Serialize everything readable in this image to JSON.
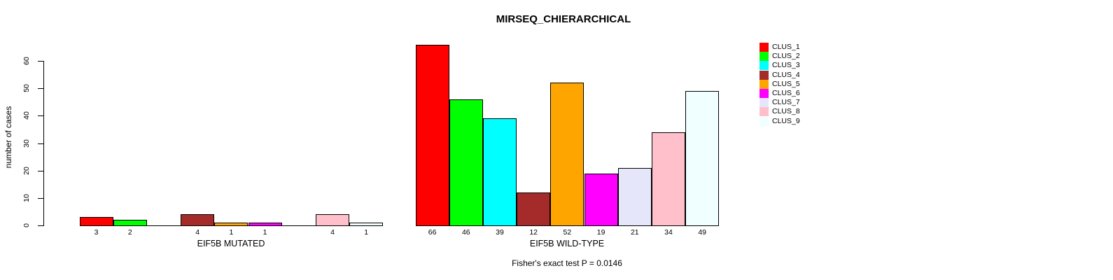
{
  "chart_data": {
    "type": "bar",
    "title": "MIRSEQ_CHIERARCHICAL",
    "ylabel": "number of cases",
    "xlabel": "",
    "ylim": [
      0,
      60
    ],
    "yticks": [
      0,
      10,
      20,
      30,
      40,
      50,
      60
    ],
    "categories": [
      "CLUS_1",
      "CLUS_2",
      "CLUS_3",
      "CLUS_4",
      "CLUS_5",
      "CLUS_6",
      "CLUS_7",
      "CLUS_8",
      "CLUS_9"
    ],
    "colors": [
      "#FF0000",
      "#00FF00",
      "#00FFFF",
      "#A52A2A",
      "#FFA500",
      "#FF00FF",
      "#E6E6FA",
      "#FFC0CB",
      "#F0FFFF"
    ],
    "groups": [
      {
        "label": "EIF5B MUTATED",
        "values": [
          3,
          2,
          0,
          4,
          1,
          1,
          0,
          4,
          1
        ],
        "bar_labels": [
          "3",
          "2",
          "",
          "4",
          "1",
          "1",
          "",
          "4",
          "1"
        ]
      },
      {
        "label": "EIF5B WILD-TYPE",
        "values": [
          66,
          46,
          39,
          12,
          52,
          19,
          21,
          34,
          49
        ],
        "bar_labels": [
          "66",
          "46",
          "39",
          "12",
          "52",
          "19",
          "21",
          "34",
          "49"
        ]
      }
    ],
    "legend_position": "top-right",
    "grid": false,
    "annotation": "Fisher's exact test P = 0.0146"
  }
}
